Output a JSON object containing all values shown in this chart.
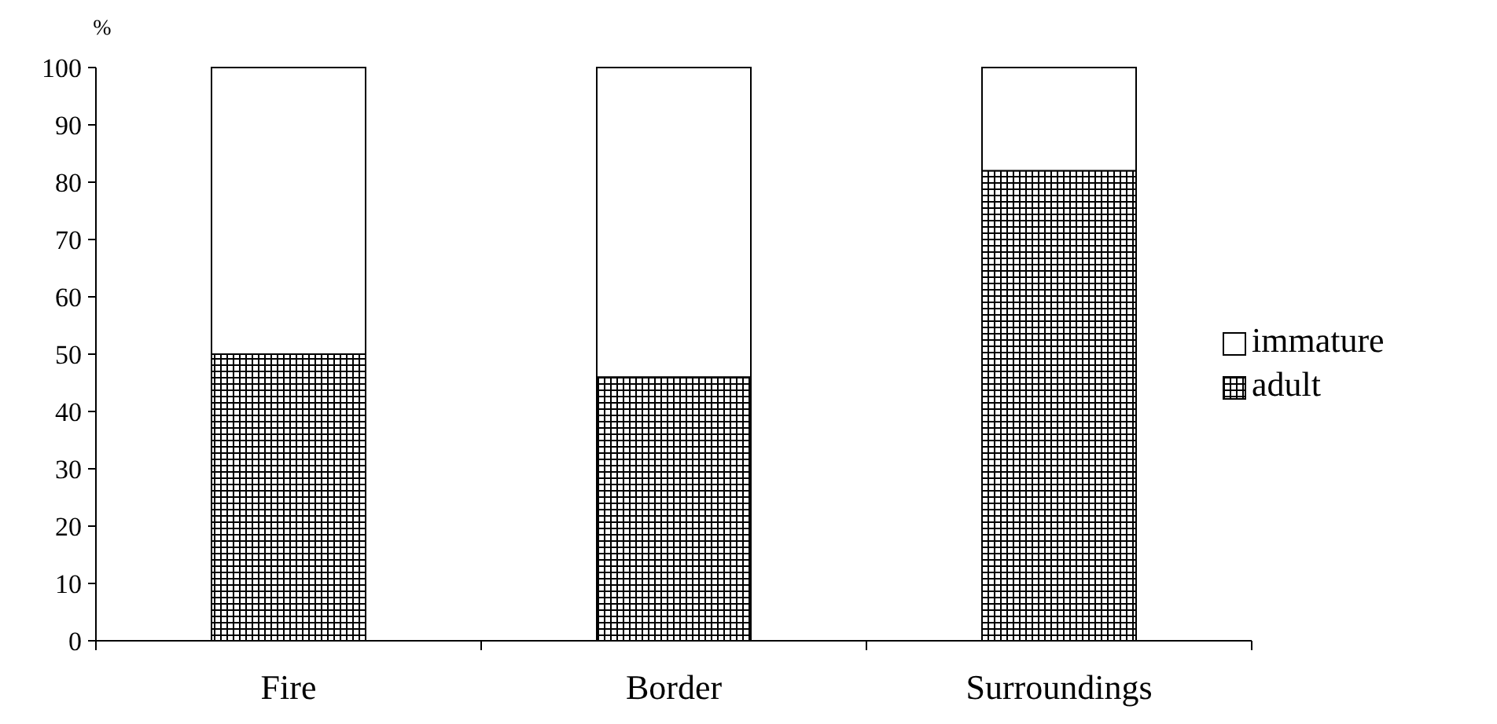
{
  "chart_data": {
    "type": "bar",
    "ylabel": "%",
    "categories": [
      "Fire",
      "Border",
      "Surroundings"
    ],
    "stacked": true,
    "series": [
      {
        "name": "adult",
        "color": "#000000",
        "values": [
          50,
          46,
          82
        ]
      },
      {
        "name": "immature",
        "color": "#ffffff",
        "values": [
          50,
          54,
          18
        ]
      }
    ],
    "ylim": [
      0,
      100
    ],
    "yticks": [
      0,
      10,
      20,
      30,
      40,
      50,
      60,
      70,
      80,
      90,
      100
    ],
    "grid": false,
    "legend": "right"
  }
}
